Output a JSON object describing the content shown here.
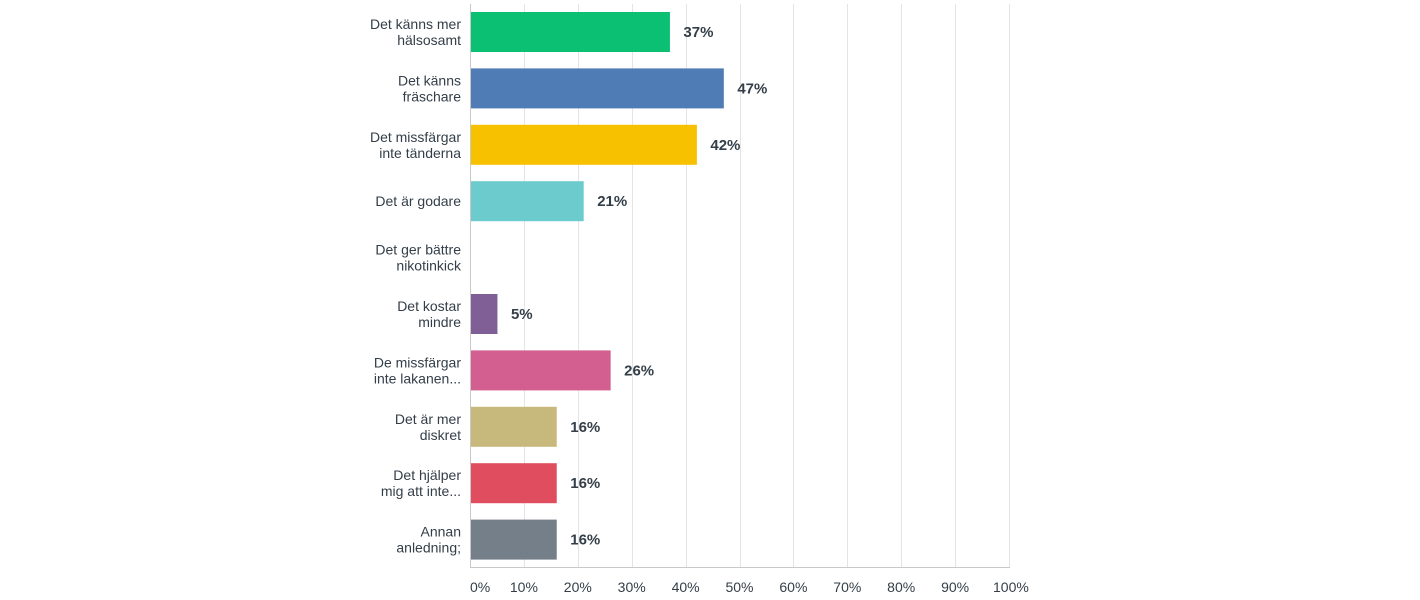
{
  "chart_data": {
    "type": "bar",
    "orientation": "horizontal",
    "categories": [
      [
        "Det känns mer",
        "hälsosamt"
      ],
      [
        "Det känns",
        "fräschare"
      ],
      [
        "Det missfärgar",
        "inte tänderna"
      ],
      [
        "Det är godare"
      ],
      [
        "Det ger bättre",
        "nikotinkick"
      ],
      [
        "Det kostar",
        "mindre"
      ],
      [
        "De missfärgar",
        "inte lakanen..."
      ],
      [
        "Det är mer",
        "diskret"
      ],
      [
        "Det hjälper",
        "mig att inte..."
      ],
      [
        "Annan",
        "anledning;"
      ]
    ],
    "values": [
      37,
      47,
      42,
      21,
      0,
      5,
      26,
      16,
      16,
      16
    ],
    "value_labels": [
      "37%",
      "47%",
      "42%",
      "21%",
      "",
      "5%",
      "26%",
      "16%",
      "16%",
      "16%"
    ],
    "colors": [
      "#0bbf73",
      "#507cb6",
      "#f8c100",
      "#6ccbcc",
      "#ffffff",
      "#7f5f96",
      "#d25f90",
      "#c7b87c",
      "#df4d5e",
      "#757f89"
    ],
    "xlim": [
      0,
      100
    ],
    "ticks": [
      0,
      10,
      20,
      30,
      40,
      50,
      60,
      70,
      80,
      90,
      100
    ],
    "tick_labels": [
      "0%",
      "10%",
      "20%",
      "30%",
      "40%",
      "50%",
      "60%",
      "70%",
      "80%",
      "90%",
      "100%"
    ],
    "grid": true,
    "legend": false
  }
}
